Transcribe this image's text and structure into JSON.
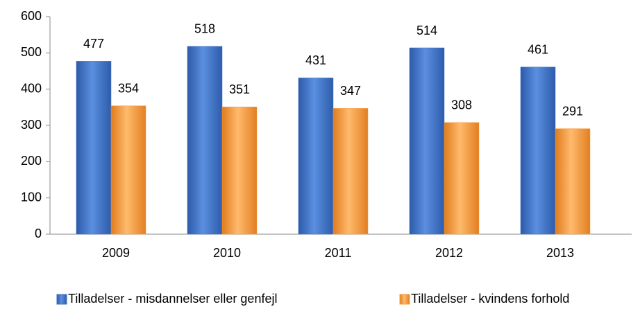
{
  "chart_data": {
    "type": "bar",
    "categories": [
      "2009",
      "2010",
      "2011",
      "2012",
      "2013"
    ],
    "series": [
      {
        "name": "Tilladelser - misdannelser eller genfejl",
        "color": "#3f72c6",
        "values": [
          477,
          518,
          431,
          514,
          461
        ]
      },
      {
        "name": "Tilladelser - kvindens forhold",
        "color": "#f7993a",
        "values": [
          354,
          351,
          347,
          308,
          291
        ]
      }
    ],
    "ylim": [
      0,
      600
    ],
    "yticks": [
      0,
      100,
      200,
      300,
      400,
      500,
      600
    ]
  }
}
